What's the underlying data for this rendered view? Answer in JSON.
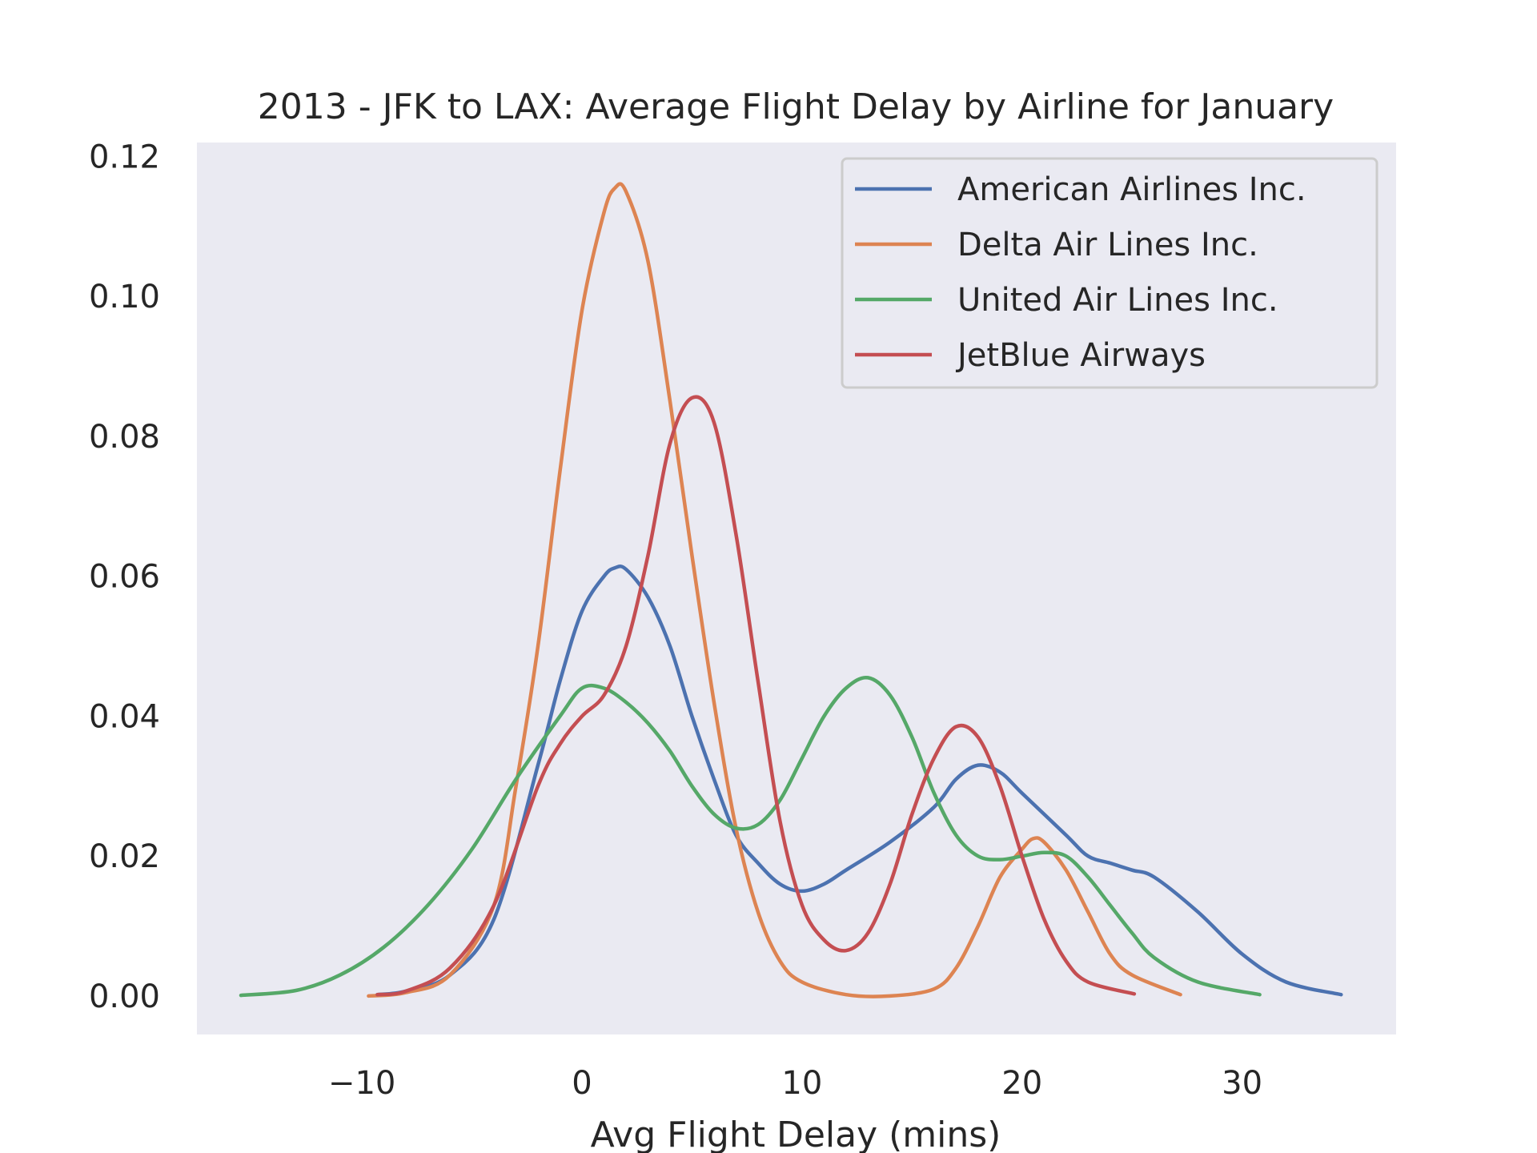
{
  "chart_data": {
    "type": "line",
    "title": "2013 - JFK to LAX: Average Flight Delay by Airline for January",
    "xlabel": "Avg Flight Delay (mins)",
    "ylabel": "",
    "xlim": [
      -17.5,
      37
    ],
    "ylim": [
      -0.0055,
      0.122
    ],
    "xticks": [
      -10,
      0,
      10,
      20,
      30
    ],
    "xtick_labels": [
      "−10",
      "0",
      "10",
      "20",
      "30"
    ],
    "yticks": [
      0.0,
      0.02,
      0.04,
      0.06,
      0.08,
      0.1,
      0.12
    ],
    "ytick_labels": [
      "0.00",
      "0.02",
      "0.04",
      "0.06",
      "0.08",
      "0.10",
      "0.12"
    ],
    "grid": false,
    "legend_position": "top-right",
    "plot_background": "#eaeaf2",
    "series": [
      {
        "name": "American Airlines Inc.",
        "color": "#4c72b0",
        "points": [
          [
            -9.3,
            0.0002
          ],
          [
            -8,
            0.0007
          ],
          [
            -6,
            0.003
          ],
          [
            -4,
            0.011
          ],
          [
            -2,
            0.033
          ],
          [
            -1,
            0.045
          ],
          [
            0,
            0.055
          ],
          [
            1,
            0.06
          ],
          [
            1.5,
            0.0612
          ],
          [
            2,
            0.061
          ],
          [
            3,
            0.057
          ],
          [
            4,
            0.05
          ],
          [
            5,
            0.04
          ],
          [
            6,
            0.031
          ],
          [
            7,
            0.023
          ],
          [
            8,
            0.019
          ],
          [
            9,
            0.016
          ],
          [
            10,
            0.015
          ],
          [
            11,
            0.016
          ],
          [
            12,
            0.018
          ],
          [
            14,
            0.022
          ],
          [
            16,
            0.027
          ],
          [
            17,
            0.031
          ],
          [
            18,
            0.033
          ],
          [
            19,
            0.032
          ],
          [
            20,
            0.029
          ],
          [
            22,
            0.023
          ],
          [
            23,
            0.02
          ],
          [
            24,
            0.019
          ],
          [
            25,
            0.018
          ],
          [
            26,
            0.017
          ],
          [
            28,
            0.012
          ],
          [
            30,
            0.006
          ],
          [
            32,
            0.002
          ],
          [
            34.5,
            0.0002
          ]
        ]
      },
      {
        "name": "Delta Air Lines Inc.",
        "color": "#dd8452",
        "points": [
          [
            -9.7,
            0.0
          ],
          [
            -8,
            0.0005
          ],
          [
            -6,
            0.003
          ],
          [
            -4,
            0.013
          ],
          [
            -3,
            0.03
          ],
          [
            -2,
            0.05
          ],
          [
            -1,
            0.075
          ],
          [
            0,
            0.098
          ],
          [
            1,
            0.112
          ],
          [
            1.5,
            0.1155
          ],
          [
            2,
            0.115
          ],
          [
            3,
            0.105
          ],
          [
            4,
            0.085
          ],
          [
            5,
            0.063
          ],
          [
            6,
            0.042
          ],
          [
            7,
            0.024
          ],
          [
            8,
            0.012
          ],
          [
            9,
            0.005
          ],
          [
            10,
            0.002
          ],
          [
            12,
            0.0002
          ],
          [
            14,
            0.0
          ],
          [
            16,
            0.001
          ],
          [
            17,
            0.004
          ],
          [
            18,
            0.01
          ],
          [
            19,
            0.017
          ],
          [
            20,
            0.021
          ],
          [
            20.5,
            0.0225
          ],
          [
            21,
            0.022
          ],
          [
            22,
            0.018
          ],
          [
            23,
            0.012
          ],
          [
            24,
            0.006
          ],
          [
            25,
            0.003
          ],
          [
            27.2,
            0.0002
          ]
        ]
      },
      {
        "name": "United Air Lines Inc.",
        "color": "#55a868",
        "points": [
          [
            -15.5,
            0.0001
          ],
          [
            -13,
            0.0008
          ],
          [
            -11,
            0.003
          ],
          [
            -9,
            0.007
          ],
          [
            -7,
            0.013
          ],
          [
            -5,
            0.021
          ],
          [
            -3,
            0.031
          ],
          [
            -1,
            0.04
          ],
          [
            0,
            0.044
          ],
          [
            1,
            0.044
          ],
          [
            2,
            0.042
          ],
          [
            3,
            0.039
          ],
          [
            4,
            0.035
          ],
          [
            5,
            0.03
          ],
          [
            6,
            0.026
          ],
          [
            7,
            0.024
          ],
          [
            8,
            0.0245
          ],
          [
            9,
            0.028
          ],
          [
            10,
            0.034
          ],
          [
            11,
            0.04
          ],
          [
            12,
            0.044
          ],
          [
            13,
            0.0455
          ],
          [
            14,
            0.043
          ],
          [
            15,
            0.037
          ],
          [
            16,
            0.029
          ],
          [
            17,
            0.023
          ],
          [
            18,
            0.02
          ],
          [
            19,
            0.0195
          ],
          [
            20,
            0.02
          ],
          [
            21,
            0.0205
          ],
          [
            22,
            0.02
          ],
          [
            23,
            0.017
          ],
          [
            24,
            0.013
          ],
          [
            25,
            0.009
          ],
          [
            26,
            0.0055
          ],
          [
            28,
            0.002
          ],
          [
            30.8,
            0.0002
          ]
        ]
      },
      {
        "name": "JetBlue Airways",
        "color": "#c44e52",
        "points": [
          [
            -9.3,
            0.0002
          ],
          [
            -8,
            0.0007
          ],
          [
            -6,
            0.004
          ],
          [
            -4,
            0.013
          ],
          [
            -2,
            0.03
          ],
          [
            -1,
            0.036
          ],
          [
            0,
            0.04
          ],
          [
            1,
            0.043
          ],
          [
            2,
            0.05
          ],
          [
            3,
            0.063
          ],
          [
            4,
            0.079
          ],
          [
            5,
            0.0855
          ],
          [
            6,
            0.082
          ],
          [
            7,
            0.066
          ],
          [
            8,
            0.045
          ],
          [
            9,
            0.025
          ],
          [
            10,
            0.013
          ],
          [
            11,
            0.008
          ],
          [
            12,
            0.0065
          ],
          [
            13,
            0.009
          ],
          [
            14,
            0.016
          ],
          [
            15,
            0.026
          ],
          [
            16,
            0.034
          ],
          [
            17,
            0.0385
          ],
          [
            18,
            0.037
          ],
          [
            19,
            0.03
          ],
          [
            20,
            0.02
          ],
          [
            21,
            0.011
          ],
          [
            22,
            0.005
          ],
          [
            23,
            0.002
          ],
          [
            25.1,
            0.0003
          ]
        ]
      }
    ]
  }
}
